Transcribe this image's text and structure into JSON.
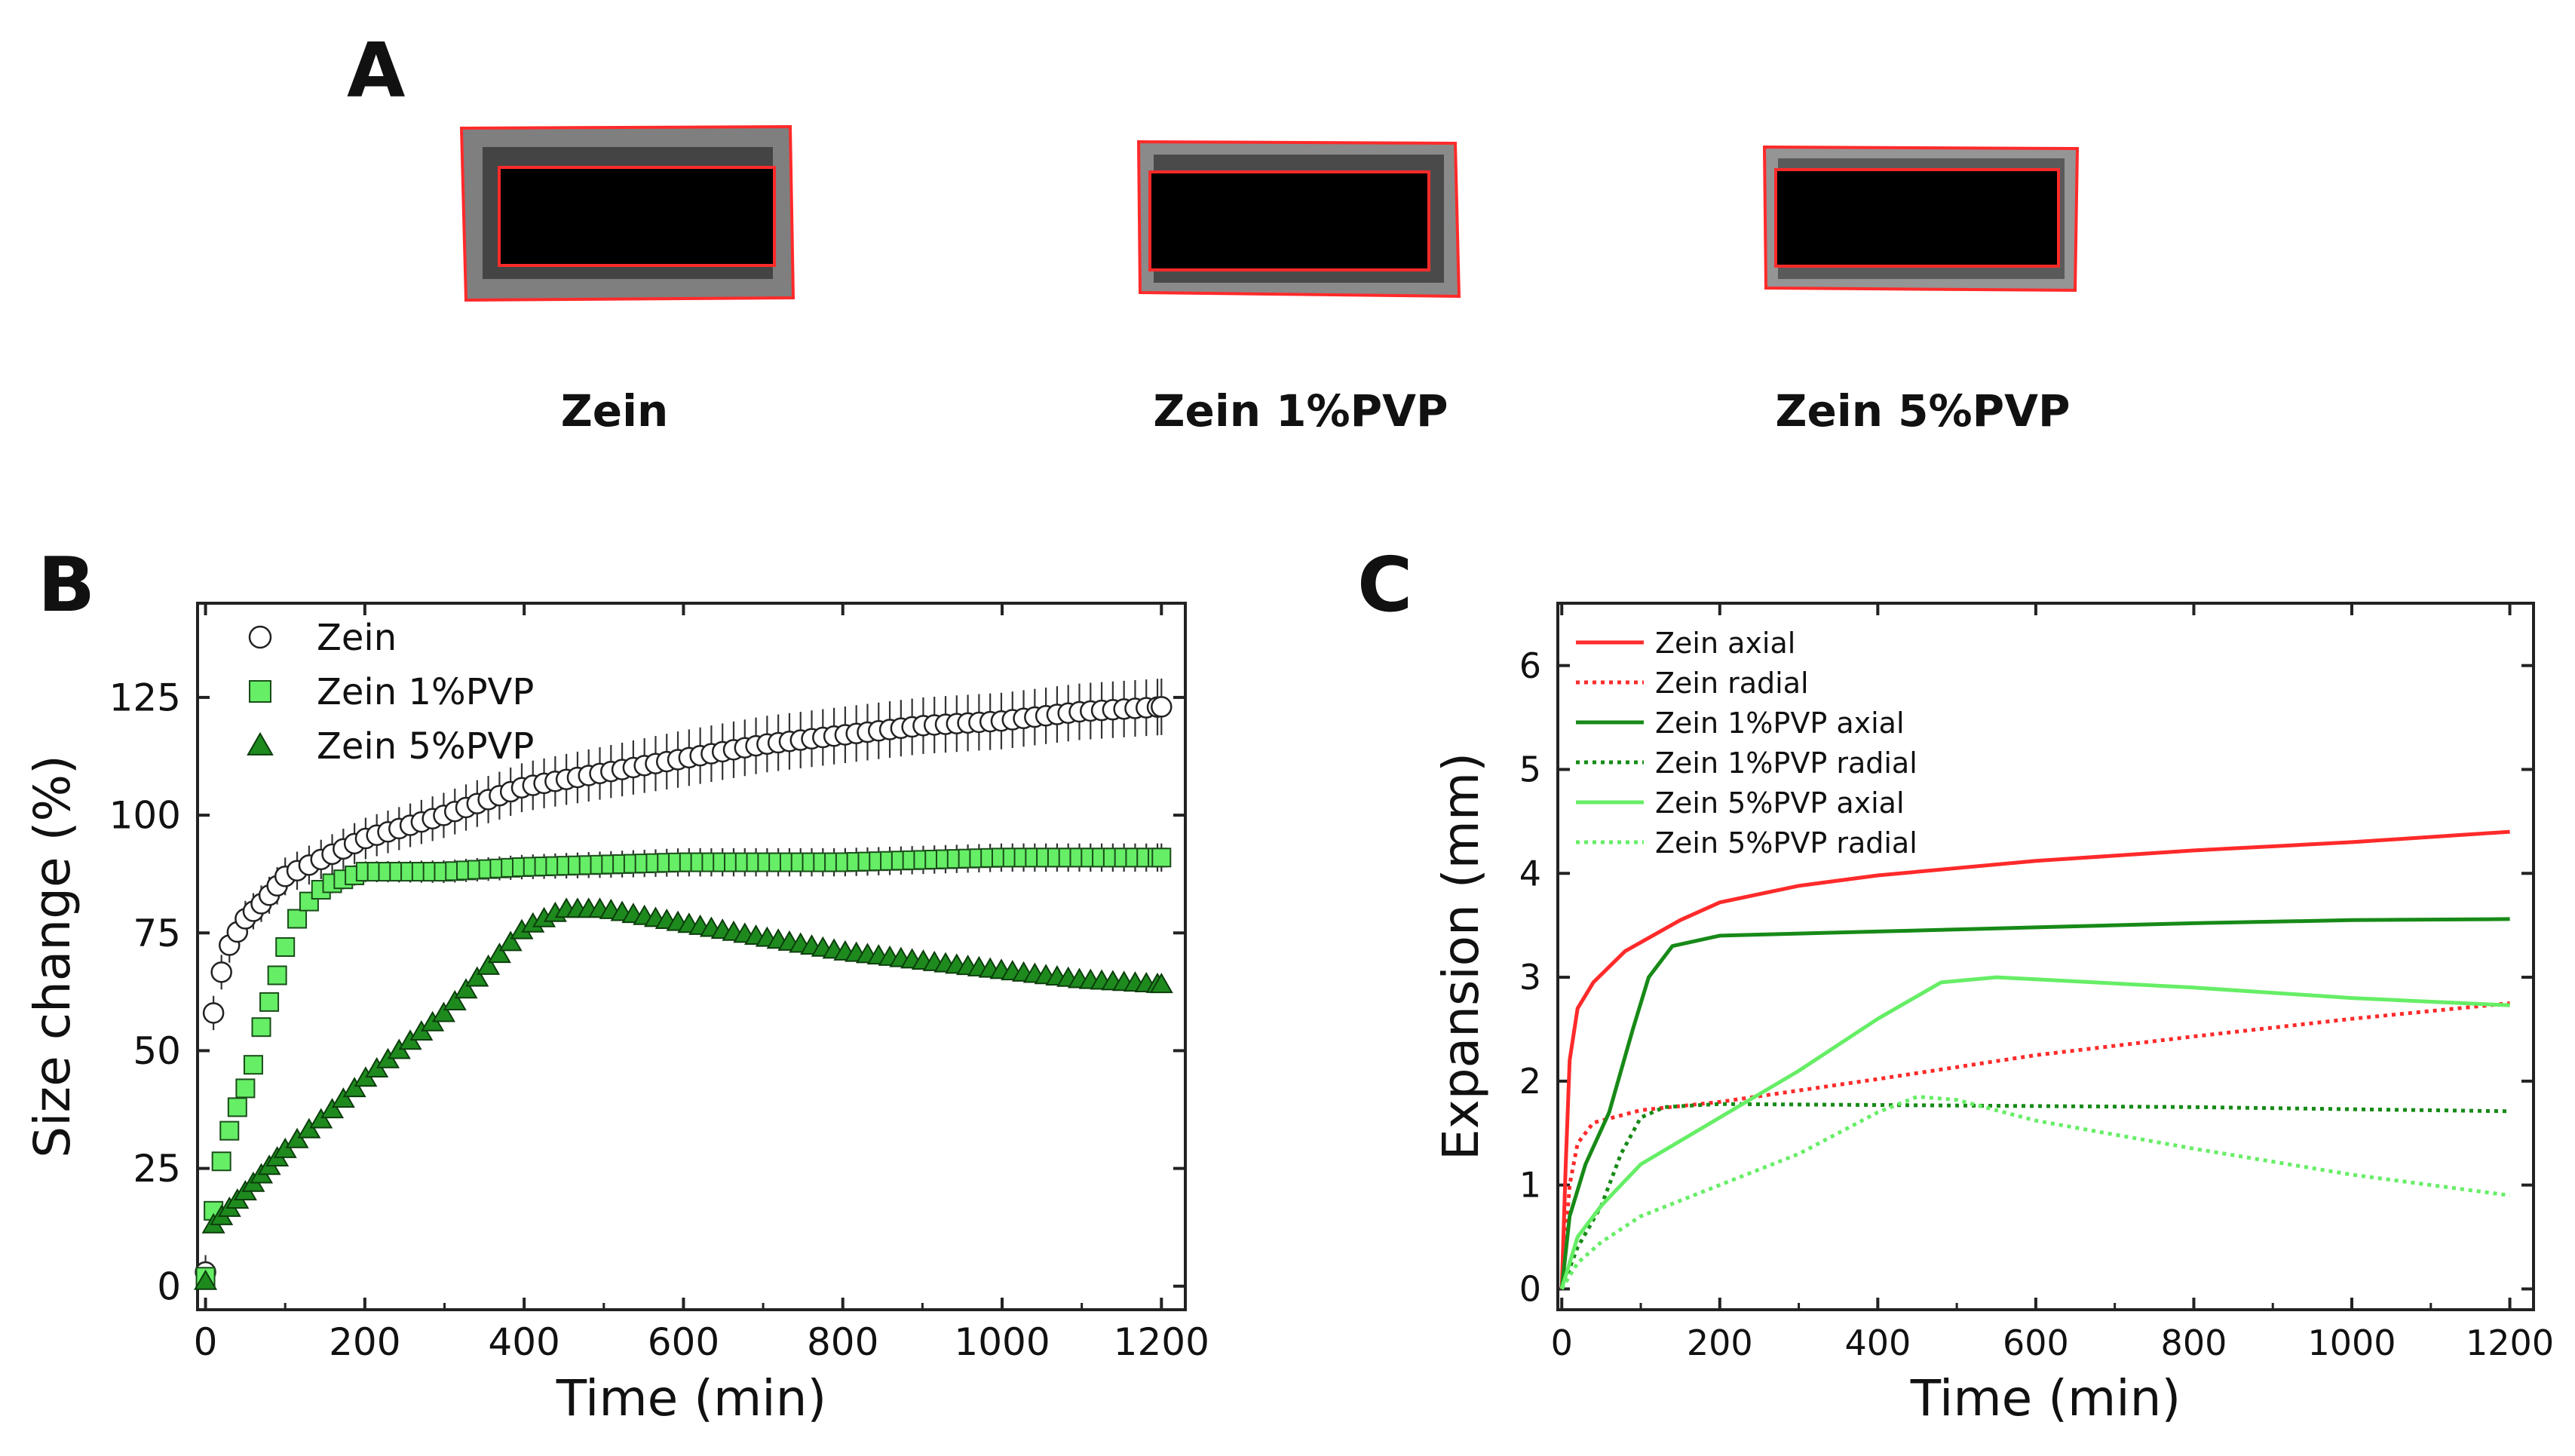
{
  "panels": {
    "a": {
      "letter": "A",
      "images": [
        {
          "label": "Zein"
        },
        {
          "label": "Zein 1%PVP"
        },
        {
          "label": "Zein 5%PVP"
        }
      ]
    },
    "b": {
      "letter": "B"
    },
    "c": {
      "letter": "C"
    }
  },
  "colors": {
    "zein": "#ffffff",
    "zein_1pvp_marker": "#66ee66",
    "zein_5pvp_marker": "#1e8a1e",
    "line_red": "#ff2a2a",
    "line_dark_green": "#178a17",
    "line_light_green": "#66ee66"
  },
  "chart_data": [
    {
      "id": "B",
      "type": "scatter",
      "title": "",
      "xlabel": "Time (min)",
      "ylabel": "Size change (%)",
      "xlim": [
        -10,
        1230
      ],
      "ylim": [
        -5,
        145
      ],
      "xticks": [
        0,
        200,
        400,
        600,
        800,
        1000,
        1200
      ],
      "yticks": [
        0,
        25,
        50,
        75,
        100,
        125
      ],
      "legend_position": "top-left",
      "error_bars": true,
      "series": [
        {
          "name": "Zein",
          "marker": "circle",
          "color": "#ffffff",
          "points": [
            [
              0,
              3
            ],
            [
              10,
              58
            ],
            [
              25,
              71
            ],
            [
              50,
              78
            ],
            [
              75,
              82
            ],
            [
              100,
              87
            ],
            [
              150,
              91
            ],
            [
              200,
              95
            ],
            [
              300,
              100
            ],
            [
              400,
              106
            ],
            [
              500,
              109
            ],
            [
              600,
              112
            ],
            [
              700,
              115
            ],
            [
              800,
              117
            ],
            [
              900,
              119
            ],
            [
              1000,
              120
            ],
            [
              1100,
              122
            ],
            [
              1200,
              123
            ]
          ],
          "err": 6
        },
        {
          "name": "Zein 1%PVP",
          "marker": "square",
          "color": "#66ee66",
          "points": [
            [
              0,
              2
            ],
            [
              15,
              23
            ],
            [
              25,
              30
            ],
            [
              35,
              36
            ],
            [
              50,
              42
            ],
            [
              60,
              47
            ],
            [
              70,
              55
            ],
            [
              85,
              63
            ],
            [
              100,
              72
            ],
            [
              120,
              80
            ],
            [
              150,
              85
            ],
            [
              200,
              88
            ],
            [
              300,
              88
            ],
            [
              400,
              89
            ],
            [
              600,
              90
            ],
            [
              800,
              90
            ],
            [
              1000,
              91
            ],
            [
              1200,
              91
            ]
          ],
          "err": 3
        },
        {
          "name": "Zein 5%PVP",
          "marker": "triangle",
          "color": "#1e8a1e",
          "points": [
            [
              0,
              1
            ],
            [
              10,
              13
            ],
            [
              50,
              20
            ],
            [
              100,
              29
            ],
            [
              150,
              36
            ],
            [
              200,
              44
            ],
            [
              250,
              51
            ],
            [
              300,
              58
            ],
            [
              350,
              67
            ],
            [
              400,
              76
            ],
            [
              450,
              80
            ],
            [
              500,
              80
            ],
            [
              600,
              77
            ],
            [
              700,
              74
            ],
            [
              800,
              71
            ],
            [
              900,
              69
            ],
            [
              1000,
              67
            ],
            [
              1100,
              65
            ],
            [
              1200,
              64
            ]
          ],
          "err": 1.5
        }
      ]
    },
    {
      "id": "C",
      "type": "line",
      "title": "",
      "xlabel": "Time (min)",
      "ylabel": "Expansion (mm)",
      "xlim": [
        -5,
        1230
      ],
      "ylim": [
        -0.2,
        6.6
      ],
      "xticks": [
        0,
        200,
        400,
        600,
        800,
        1000,
        1200
      ],
      "yticks": [
        0,
        1,
        2,
        3,
        4,
        5,
        6
      ],
      "legend_position": "top-left",
      "series": [
        {
          "name": "Zein axial",
          "color": "#ff2a2a",
          "dash": "solid",
          "points": [
            [
              0,
              0
            ],
            [
              5,
              1.2
            ],
            [
              10,
              2.2
            ],
            [
              20,
              2.7
            ],
            [
              40,
              2.95
            ],
            [
              80,
              3.25
            ],
            [
              150,
              3.55
            ],
            [
              200,
              3.72
            ],
            [
              300,
              3.88
            ],
            [
              400,
              3.98
            ],
            [
              600,
              4.12
            ],
            [
              800,
              4.22
            ],
            [
              1000,
              4.3
            ],
            [
              1200,
              4.4
            ]
          ]
        },
        {
          "name": "Zein radial",
          "color": "#ff2a2a",
          "dash": "dotted",
          "points": [
            [
              0,
              0
            ],
            [
              10,
              1.0
            ],
            [
              20,
              1.4
            ],
            [
              40,
              1.6
            ],
            [
              100,
              1.72
            ],
            [
              200,
              1.8
            ],
            [
              400,
              2.02
            ],
            [
              600,
              2.25
            ],
            [
              800,
              2.43
            ],
            [
              1000,
              2.6
            ],
            [
              1200,
              2.75
            ]
          ]
        },
        {
          "name": "Zein 1%PVP axial",
          "color": "#178a17",
          "dash": "solid",
          "points": [
            [
              0,
              0
            ],
            [
              10,
              0.7
            ],
            [
              30,
              1.2
            ],
            [
              60,
              1.7
            ],
            [
              90,
              2.5
            ],
            [
              110,
              3.0
            ],
            [
              140,
              3.3
            ],
            [
              200,
              3.4
            ],
            [
              400,
              3.44
            ],
            [
              600,
              3.48
            ],
            [
              800,
              3.52
            ],
            [
              1000,
              3.55
            ],
            [
              1200,
              3.56
            ]
          ]
        },
        {
          "name": "Zein 1%PVP radial",
          "color": "#178a17",
          "dash": "dotted",
          "points": [
            [
              0,
              0
            ],
            [
              20,
              0.4
            ],
            [
              50,
              0.8
            ],
            [
              75,
              1.3
            ],
            [
              100,
              1.65
            ],
            [
              130,
              1.75
            ],
            [
              200,
              1.78
            ],
            [
              400,
              1.77
            ],
            [
              600,
              1.76
            ],
            [
              800,
              1.75
            ],
            [
              1000,
              1.73
            ],
            [
              1200,
              1.71
            ]
          ]
        },
        {
          "name": "Zein 5%PVP axial",
          "color": "#66ee66",
          "dash": "solid",
          "points": [
            [
              0,
              0
            ],
            [
              20,
              0.5
            ],
            [
              50,
              0.8
            ],
            [
              100,
              1.2
            ],
            [
              200,
              1.65
            ],
            [
              300,
              2.1
            ],
            [
              400,
              2.6
            ],
            [
              480,
              2.95
            ],
            [
              550,
              3.0
            ],
            [
              600,
              2.98
            ],
            [
              800,
              2.9
            ],
            [
              1000,
              2.8
            ],
            [
              1200,
              2.73
            ]
          ]
        },
        {
          "name": "Zein 5%PVP radial",
          "color": "#66ee66",
          "dash": "dotted",
          "points": [
            [
              0,
              0
            ],
            [
              20,
              0.25
            ],
            [
              50,
              0.45
            ],
            [
              100,
              0.7
            ],
            [
              200,
              1.0
            ],
            [
              300,
              1.3
            ],
            [
              400,
              1.7
            ],
            [
              450,
              1.85
            ],
            [
              500,
              1.82
            ],
            [
              600,
              1.62
            ],
            [
              800,
              1.35
            ],
            [
              1000,
              1.1
            ],
            [
              1200,
              0.9
            ]
          ]
        }
      ]
    }
  ]
}
